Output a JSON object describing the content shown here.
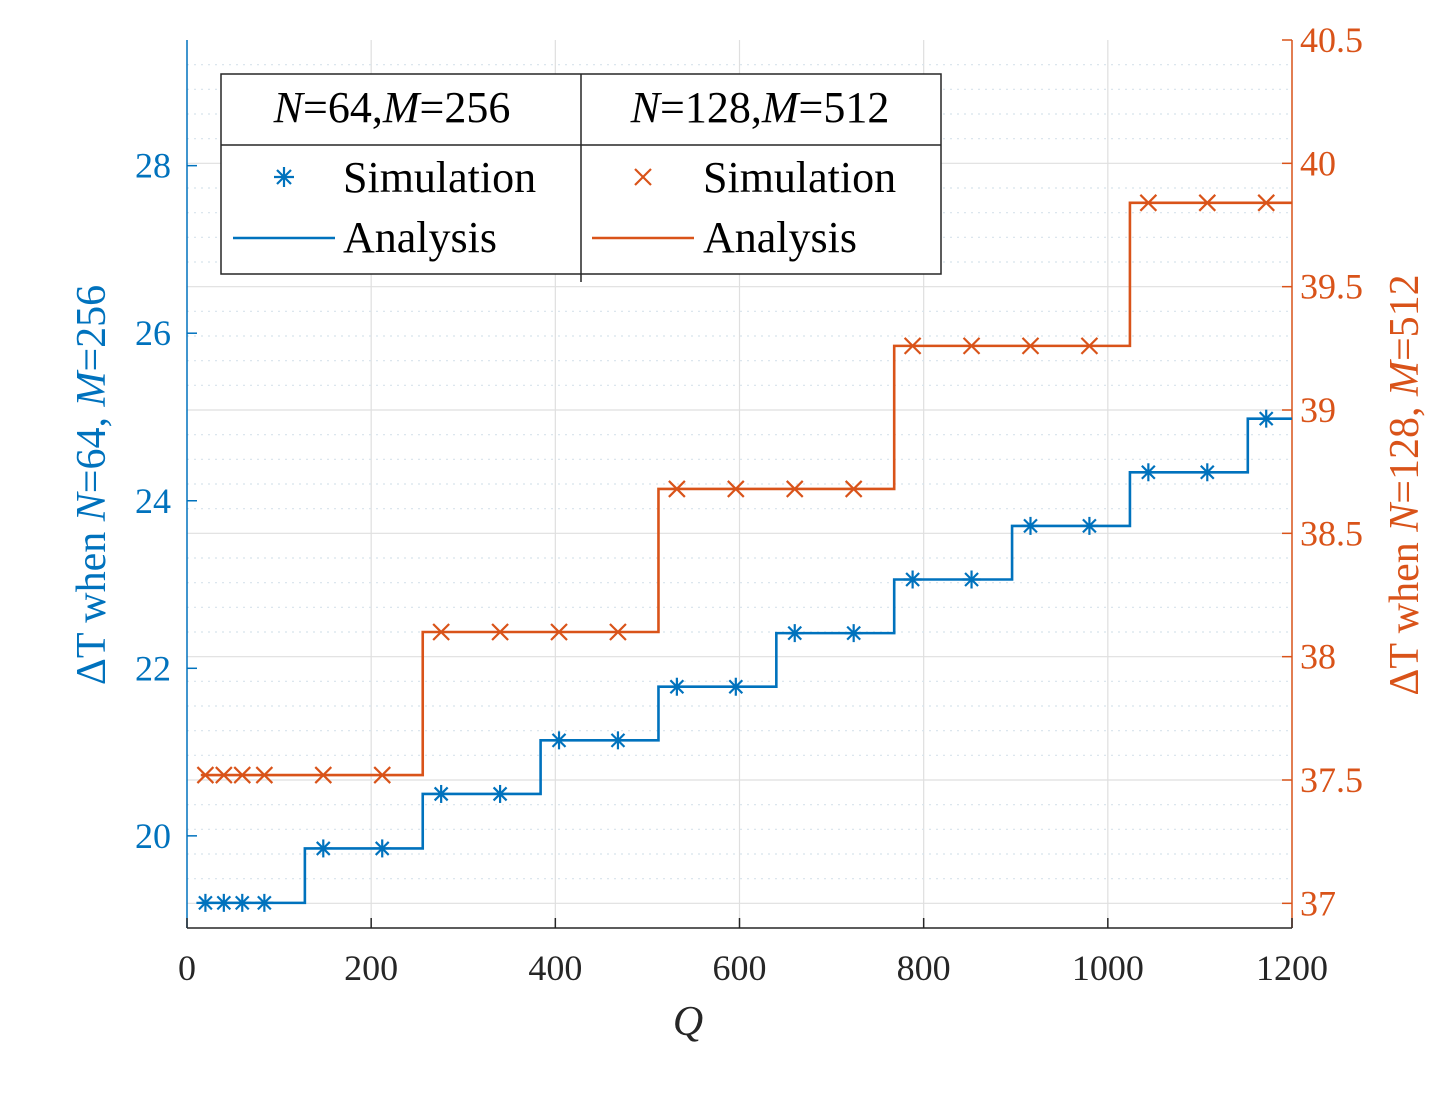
{
  "chart_data": {
    "type": "line",
    "title": "",
    "xlabel": "Q",
    "xlim": [
      0,
      1200
    ],
    "xticks": [
      0,
      200,
      400,
      600,
      800,
      1000,
      1200
    ],
    "xtick_labels": [
      "0",
      "200",
      "400",
      "600",
      "800",
      "1000",
      "1200"
    ],
    "left_axis": {
      "label_prefix": "ΔT when ",
      "label_n": "N",
      "label_n_val": "=64, ",
      "label_m": "M",
      "label_m_val": "=256",
      "color": "#0072bd",
      "ylim": [
        18.9,
        29.5
      ],
      "ticks": [
        20,
        22,
        24,
        26,
        28
      ],
      "tick_labels": [
        "20",
        "22",
        "24",
        "26",
        "28"
      ]
    },
    "right_axis": {
      "label_prefix": "ΔT when ",
      "label_n": "N",
      "label_n_val": "=128, ",
      "label_m": "M",
      "label_m_val": "=512",
      "color": "#d95319",
      "ylim": [
        36.9,
        40.5
      ],
      "ticks": [
        37,
        37.5,
        38,
        38.5,
        39,
        39.5,
        40,
        40.5
      ],
      "tick_labels": [
        "37",
        "37.5",
        "38",
        "38.5",
        "39",
        "39.5",
        "40",
        "40.5"
      ]
    },
    "series": [
      {
        "name": "N=64, M=256 Analysis",
        "axis": "left",
        "style": "step-line",
        "color": "#0072bd",
        "x": [
          15,
          128,
          128,
          256,
          256,
          384,
          384,
          512,
          512,
          640,
          640,
          768,
          768,
          896,
          896,
          1024,
          1024,
          1152,
          1152,
          1200
        ],
        "y": [
          19.2,
          19.2,
          19.85,
          19.85,
          20.5,
          20.5,
          21.14,
          21.14,
          21.78,
          21.78,
          22.42,
          22.42,
          23.06,
          23.06,
          23.7,
          23.7,
          24.34,
          24.34,
          24.98,
          24.98
        ]
      },
      {
        "name": "N=64, M=256 Simulation",
        "axis": "left",
        "style": "marker-asterisk",
        "color": "#0072bd",
        "x": [
          20,
          40,
          60,
          84,
          148,
          212,
          276,
          340,
          404,
          468,
          532,
          596,
          660,
          724,
          788,
          852,
          916,
          980,
          1044,
          1108,
          1172
        ],
        "y": [
          19.2,
          19.2,
          19.2,
          19.2,
          19.85,
          19.85,
          20.5,
          20.5,
          21.14,
          21.14,
          21.78,
          21.78,
          22.42,
          22.42,
          23.06,
          23.06,
          23.7,
          23.7,
          24.34,
          24.34,
          24.98
        ]
      },
      {
        "name": "N=128, M=512 Analysis",
        "axis": "right",
        "style": "step-line",
        "color": "#d95319",
        "x": [
          15,
          256,
          256,
          512,
          512,
          768,
          768,
          1024,
          1024,
          1200
        ],
        "y": [
          37.52,
          37.52,
          38.1,
          38.1,
          38.68,
          38.68,
          39.26,
          39.26,
          39.84,
          39.84
        ]
      },
      {
        "name": "N=128, M=512 Simulation",
        "axis": "right",
        "style": "marker-x",
        "color": "#d95319",
        "x": [
          20,
          40,
          60,
          84,
          148,
          212,
          276,
          340,
          404,
          468,
          532,
          596,
          660,
          724,
          788,
          852,
          916,
          980,
          1044,
          1108,
          1172
        ],
        "y": [
          37.52,
          37.52,
          37.52,
          37.52,
          37.52,
          37.52,
          38.1,
          38.1,
          38.1,
          38.1,
          38.68,
          38.68,
          38.68,
          38.68,
          39.26,
          39.26,
          39.26,
          39.26,
          39.84,
          39.84,
          39.84
        ]
      }
    ],
    "legend": {
      "position": "top-left",
      "columns": [
        {
          "header_n": "N",
          "header_n_val": "=64,",
          "header_m": "M",
          "header_m_val": "=256",
          "sim_label": "Simulation",
          "ana_label": "Analysis",
          "color": "#0072bd",
          "marker": "asterisk"
        },
        {
          "header_n": "N",
          "header_n_val": "=128,",
          "header_m": "M",
          "header_m_val": "=512",
          "sim_label": "Simulation",
          "ana_label": "Analysis",
          "color": "#d95319",
          "marker": "x"
        }
      ]
    }
  }
}
